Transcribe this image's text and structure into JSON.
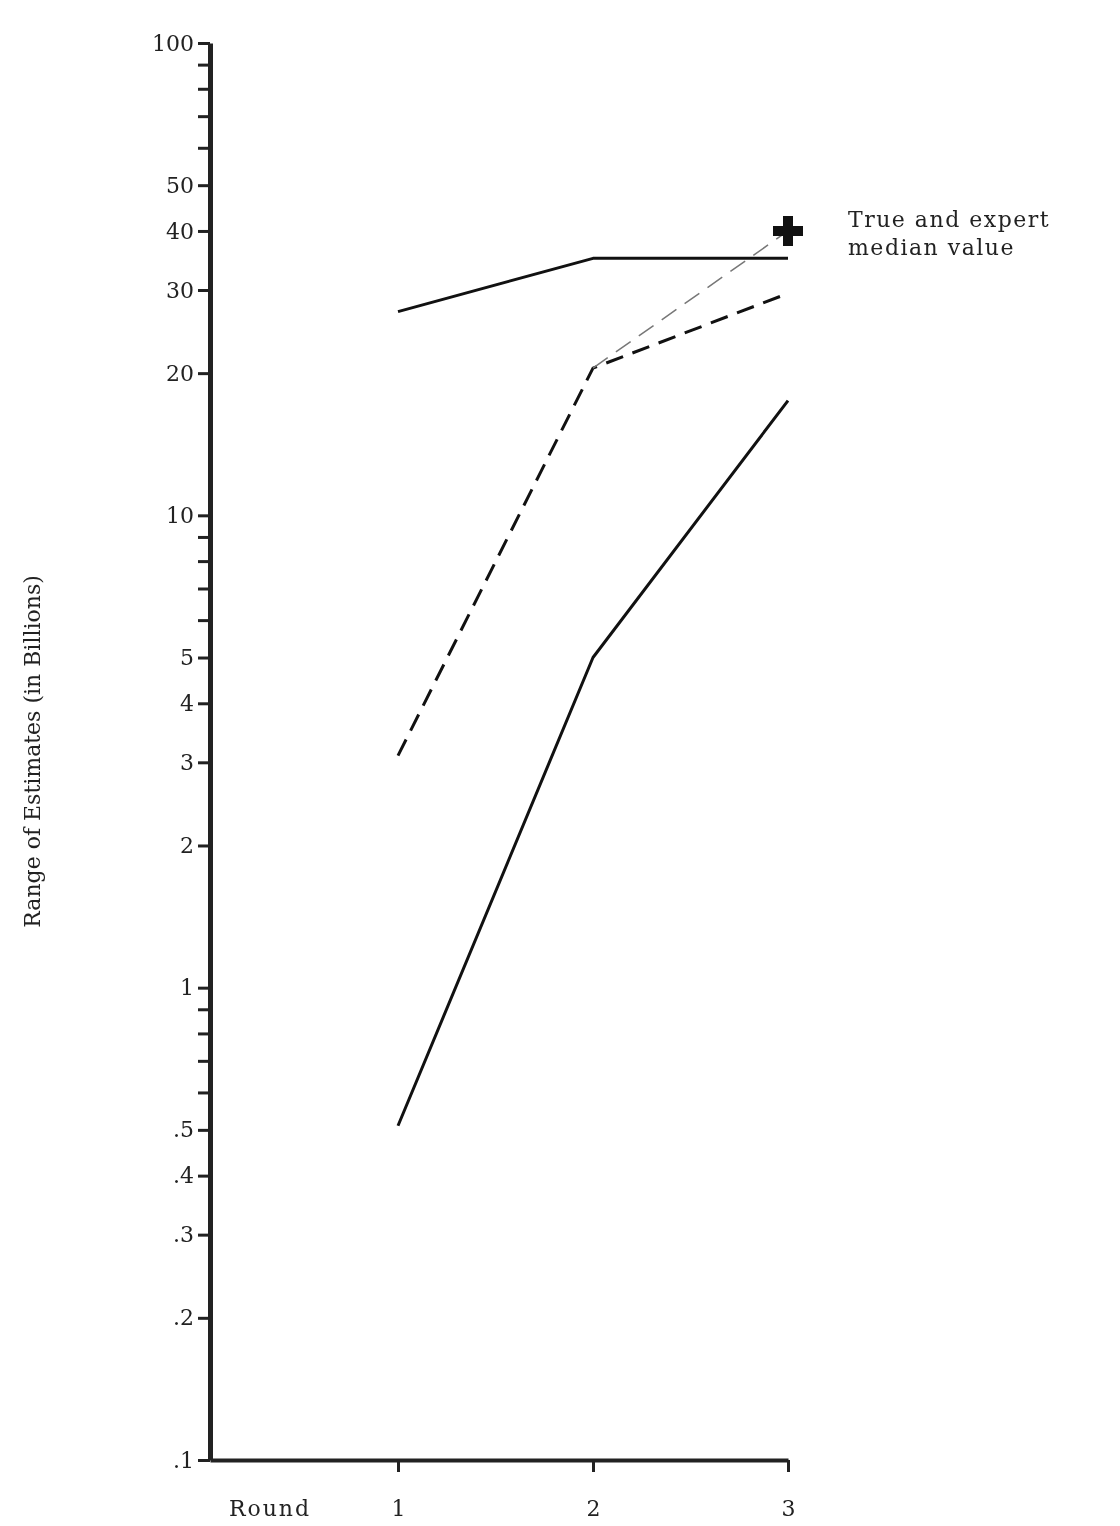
{
  "chart_data": {
    "type": "line",
    "xlabel": "Round",
    "ylabel": "Range of Estimates (in Billions)",
    "categories": [
      "1",
      "2",
      "3"
    ],
    "log": true,
    "ylim": [
      0.1,
      100
    ],
    "yticks": [
      {
        "value": 0.1,
        "label": ".1"
      },
      {
        "value": 0.2,
        "label": ".2"
      },
      {
        "value": 0.3,
        "label": ".3"
      },
      {
        "value": 0.4,
        "label": ".4"
      },
      {
        "value": 0.5,
        "label": ".5"
      },
      {
        "value": 0.6,
        "label": null
      },
      {
        "value": 0.7,
        "label": null
      },
      {
        "value": 0.8,
        "label": null
      },
      {
        "value": 0.9,
        "label": null
      },
      1,
      2,
      3,
      4,
      5,
      {
        "value": 6,
        "label": null
      },
      {
        "value": 7,
        "label": null
      },
      {
        "value": 8,
        "label": null
      },
      {
        "value": 9,
        "label": null
      },
      10,
      20,
      30,
      40,
      50,
      {
        "value": 60,
        "label": null
      },
      {
        "value": 70,
        "label": null
      },
      {
        "value": 80,
        "label": null
      },
      {
        "value": 90,
        "label": null
      },
      100
    ],
    "grid": false,
    "series": [
      {
        "color": "#111111",
        "values": [
          27,
          35,
          35
        ],
        "line_style": "solid"
      },
      {
        "color": "#111111",
        "values": [
          3.1,
          20.5,
          29.5
        ],
        "line_style": "dashed"
      },
      {
        "color": "#111111",
        "values": [
          0.51,
          5,
          17.5
        ],
        "line_style": "solid"
      },
      {
        "color": "#777777",
        "values": [
          null,
          20.5,
          40
        ],
        "line_style": "dashed"
      },
      {
        "type": "scatter",
        "color": "#111111",
        "values": [
          null,
          null,
          40
        ],
        "marker": "cross"
      }
    ],
    "annotations": [
      {
        "text": "True and expert median value",
        "x": "3",
        "y": 40
      }
    ]
  }
}
